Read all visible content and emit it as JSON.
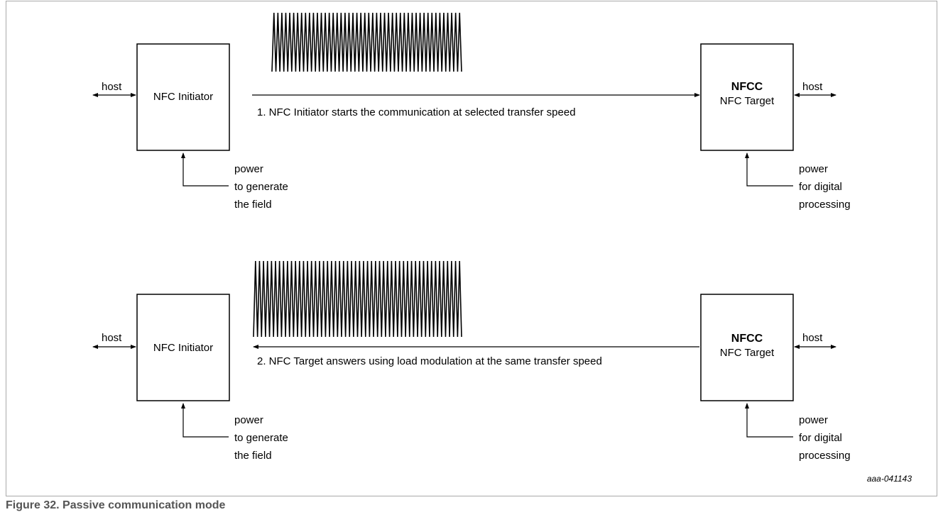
{
  "top": {
    "initiator": {
      "host": "host",
      "label": "NFC Initiator",
      "power": [
        "power",
        "to generate",
        "the field"
      ]
    },
    "target": {
      "title": "NFCC",
      "label": "NFC Target",
      "host": "host",
      "power": [
        "power",
        "for digital",
        "processing"
      ]
    },
    "message": "1. NFC Initiator starts the communication at selected transfer speed"
  },
  "bottom": {
    "initiator": {
      "host": "host",
      "label": "NFC Initiator",
      "power": [
        "power",
        "to generate",
        "the field"
      ]
    },
    "target": {
      "title": "NFCC",
      "label": "NFC Target",
      "host": "host",
      "power": [
        "power",
        "for digital",
        "processing"
      ]
    },
    "message": "2. NFC Target answers using load modulation at the same transfer speed"
  },
  "figure_code": "aaa-041143",
  "caption": "Figure 32.  Passive communication mode"
}
